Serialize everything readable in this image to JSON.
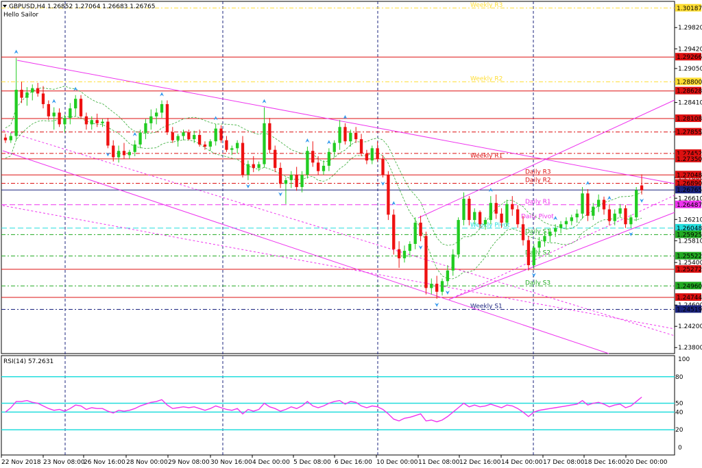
{
  "header": {
    "symbol_line": "GBPUSD,H4  1.26852 1.27064 1.26683 1.26765",
    "indicator_name": "Hello Sailor"
  },
  "rsi_header": "RSI(14) 57.2631",
  "colors": {
    "background": "#ffffff",
    "bull": "#22cc22",
    "bear": "#ee1111",
    "resistance": "#dd1111",
    "support": "#22aa22",
    "pivot_magenta": "#ee33ee",
    "cyan": "#22dddd",
    "navy": "#1a237e",
    "yellow_line": "#ffdd33"
  },
  "chart_data": [
    {
      "type": "candlestick",
      "symbol": "GBPUSD",
      "timeframe": "H4",
      "ohlc_current": {
        "open": 1.26852,
        "high": 1.27064,
        "low": 1.26683,
        "close": 1.26765
      },
      "x_tick_labels": [
        "22 Nov 2018",
        "23 Nov 08:00",
        "26 Nov 16:00",
        "28 Nov 00:00",
        "29 Nov 08:00",
        "30 Nov 16:00",
        "4 Dec 00:00",
        "5 Dec 08:00",
        "6 Dec 16:00",
        "10 Dec 00:00",
        "11 Dec 08:00",
        "12 Dec 16:00",
        "14 Dec 00:00",
        "17 Dec 08:00",
        "18 Dec 16:00",
        "20 Dec 00:00"
      ],
      "y_tick_labels": [
        "1.29820",
        "1.29420",
        "1.29050",
        "1.28410",
        "1.27860",
        "1.27000",
        "1.26610",
        "1.26210",
        "1.25810",
        "1.25400",
        "1.24600",
        "1.24200",
        "1.23800"
      ],
      "ylim": [
        1.237,
        1.303
      ],
      "levels": [
        {
          "label": "Weekly R3",
          "price": 1.30187,
          "color": "#ffdd33",
          "style": "dash-dot",
          "tag": "1.30187"
        },
        {
          "label": "",
          "price": 1.29266,
          "color": "#dd1111",
          "style": "solid",
          "tag": "1.29266"
        },
        {
          "label": "Weekly R2",
          "price": 1.288,
          "color": "#ffdd33",
          "style": "dash-dot",
          "tag": "1.28800"
        },
        {
          "label": "",
          "price": 1.28628,
          "color": "#dd1111",
          "style": "solid",
          "tag": "1.28628"
        },
        {
          "label": "",
          "price": 1.28108,
          "color": "#dd1111",
          "style": "solid",
          "tag": "1.28108"
        },
        {
          "label": "",
          "price": 1.27855,
          "color": "#dd1111",
          "style": "dash-dot",
          "tag": "1.27855"
        },
        {
          "label": "",
          "price": 1.27452,
          "color": "#dd1111",
          "style": "dash-dot",
          "tag": "1.27452"
        },
        {
          "label": "Weekly R1",
          "price": 1.2735,
          "color": "#dd1111",
          "style": "solid",
          "tag": "1.27350"
        },
        {
          "label": "Daily R3",
          "price": 1.27048,
          "color": "#dd1111",
          "style": "solid",
          "tag": "1.27048"
        },
        {
          "label": "Daily R2",
          "price": 1.2689,
          "color": "#dd1111",
          "style": "dash-dot",
          "tag": "1.26890"
        },
        {
          "label": "",
          "price": 1.26765,
          "color": "#1a237e",
          "style": "solid",
          "tag": "1.26765"
        },
        {
          "label": "Daily R1",
          "price": 1.26487,
          "color": "#ee33ee",
          "style": "dash",
          "tag": "1.26487"
        },
        {
          "label": "Weekly Pivot",
          "price": 1.26048,
          "color": "#22dddd",
          "style": "dash",
          "tag": "1.26048"
        },
        {
          "label": "Daily S1",
          "price": 1.25925,
          "color": "#22aa22",
          "style": "dash-dot",
          "tag": "1.25925"
        },
        {
          "label": "Daily S2",
          "price": 1.25522,
          "color": "#22aa22",
          "style": "dash-dot",
          "tag": "1.25522"
        },
        {
          "label": "",
          "price": 1.25272,
          "color": "#dd1111",
          "style": "solid",
          "tag": "1.25272"
        },
        {
          "label": "Daily S3",
          "price": 1.2496,
          "color": "#22aa22",
          "style": "dash-dot",
          "tag": "1.24960"
        },
        {
          "label": "",
          "price": 1.24744,
          "color": "#dd1111",
          "style": "solid",
          "tag": "1.24744"
        },
        {
          "label": "Weekly S1",
          "price": 1.24519,
          "color": "#1a237e",
          "style": "dash-dot",
          "tag": "1.24519"
        }
      ],
      "extra_labels": [
        {
          "label": "Daily Pivot",
          "price": 1.2621,
          "color": "#ee33ee"
        }
      ],
      "candles": [
        [
          1.2775,
          1.2782,
          1.2765,
          1.277
        ],
        [
          1.277,
          1.2784,
          1.2765,
          1.2778
        ],
        [
          1.2778,
          1.2925,
          1.277,
          1.2865
        ],
        [
          1.2865,
          1.288,
          1.284,
          1.285
        ],
        [
          1.285,
          1.287,
          1.2835,
          1.286
        ],
        [
          1.286,
          1.2875,
          1.2845,
          1.2868
        ],
        [
          1.2868,
          1.2878,
          1.2852,
          1.2858
        ],
        [
          1.2858,
          1.2872,
          1.283,
          1.2838
        ],
        [
          1.2838,
          1.2845,
          1.2808,
          1.2815
        ],
        [
          1.2815,
          1.2832,
          1.279,
          1.2822
        ],
        [
          1.2822,
          1.283,
          1.2795,
          1.28
        ],
        [
          1.28,
          1.2818,
          1.2785,
          1.2812
        ],
        [
          1.2812,
          1.284,
          1.28,
          1.283
        ],
        [
          1.283,
          1.2855,
          1.2815,
          1.2848
        ],
        [
          1.2848,
          1.2855,
          1.281,
          1.2815
        ],
        [
          1.2815,
          1.2822,
          1.279,
          1.28
        ],
        [
          1.28,
          1.2815,
          1.279,
          1.2808
        ],
        [
          1.2808,
          1.282,
          1.2795,
          1.2802
        ],
        [
          1.2802,
          1.281,
          1.2795,
          1.2805
        ],
        [
          1.2805,
          1.2812,
          1.2755,
          1.276
        ],
        [
          1.276,
          1.277,
          1.273,
          1.2738
        ],
        [
          1.2738,
          1.276,
          1.2728,
          1.275
        ],
        [
          1.275,
          1.2765,
          1.2735,
          1.2742
        ],
        [
          1.2742,
          1.2752,
          1.2735,
          1.2748
        ],
        [
          1.2748,
          1.277,
          1.274,
          1.2762
        ],
        [
          1.2762,
          1.279,
          1.2755,
          1.2784
        ],
        [
          1.2784,
          1.281,
          1.2772,
          1.2802
        ],
        [
          1.2802,
          1.2828,
          1.279,
          1.2815
        ],
        [
          1.2815,
          1.283,
          1.28,
          1.2822
        ],
        [
          1.2822,
          1.2845,
          1.2812,
          1.2838
        ],
        [
          1.2838,
          1.2845,
          1.278,
          1.2785
        ],
        [
          1.2785,
          1.2795,
          1.2765,
          1.277
        ],
        [
          1.277,
          1.2782,
          1.2758,
          1.2778
        ],
        [
          1.2778,
          1.279,
          1.277,
          1.2785
        ],
        [
          1.2785,
          1.279,
          1.277,
          1.2772
        ],
        [
          1.2772,
          1.2788,
          1.2765,
          1.278
        ],
        [
          1.278,
          1.279,
          1.2758,
          1.2762
        ],
        [
          1.2762,
          1.2768,
          1.2752,
          1.2758
        ],
        [
          1.2758,
          1.2772,
          1.275,
          1.2768
        ],
        [
          1.2768,
          1.28,
          1.276,
          1.2792
        ],
        [
          1.2792,
          1.2798,
          1.2765,
          1.277
        ],
        [
          1.277,
          1.2778,
          1.2748,
          1.2752
        ],
        [
          1.2752,
          1.276,
          1.2742,
          1.2755
        ],
        [
          1.2755,
          1.277,
          1.2745,
          1.2765
        ],
        [
          1.2765,
          1.2778,
          1.27,
          1.2705
        ],
        [
          1.2705,
          1.2732,
          1.2695,
          1.2725
        ],
        [
          1.2725,
          1.274,
          1.271,
          1.2718
        ],
        [
          1.2718,
          1.273,
          1.2712,
          1.2725
        ],
        [
          1.2725,
          1.2832,
          1.2718,
          1.2802
        ],
        [
          1.2802,
          1.2812,
          1.2745,
          1.2752
        ],
        [
          1.2752,
          1.276,
          1.271,
          1.2718
        ],
        [
          1.2718,
          1.2728,
          1.268,
          1.2688
        ],
        [
          1.2688,
          1.27,
          1.265,
          1.2695
        ],
        [
          1.2695,
          1.2712,
          1.268,
          1.2705
        ],
        [
          1.2705,
          1.272,
          1.2675,
          1.2682
        ],
        [
          1.2682,
          1.2712,
          1.2672,
          1.2705
        ],
        [
          1.2705,
          1.2758,
          1.2698,
          1.275
        ],
        [
          1.275,
          1.2768,
          1.272,
          1.2728
        ],
        [
          1.2728,
          1.274,
          1.2705,
          1.2712
        ],
        [
          1.2712,
          1.2732,
          1.2705,
          1.2722
        ],
        [
          1.2722,
          1.2755,
          1.2712,
          1.2748
        ],
        [
          1.2748,
          1.277,
          1.2738,
          1.2765
        ],
        [
          1.2765,
          1.2808,
          1.2752,
          1.2795
        ],
        [
          1.2795,
          1.2802,
          1.2762,
          1.2768
        ],
        [
          1.2768,
          1.279,
          1.2758,
          1.2784
        ],
        [
          1.2784,
          1.2795,
          1.2765,
          1.2772
        ],
        [
          1.2772,
          1.2782,
          1.274,
          1.2745
        ],
        [
          1.2745,
          1.2752,
          1.2725,
          1.2732
        ],
        [
          1.2732,
          1.276,
          1.2725,
          1.2755
        ],
        [
          1.2755,
          1.2768,
          1.273,
          1.2735
        ],
        [
          1.2735,
          1.2742,
          1.27,
          1.2705
        ],
        [
          1.2705,
          1.2712,
          1.262,
          1.263
        ],
        [
          1.263,
          1.264,
          1.2555,
          1.2565
        ],
        [
          1.2565,
          1.258,
          1.253,
          1.2548
        ],
        [
          1.2548,
          1.2572,
          1.254,
          1.2562
        ],
        [
          1.2562,
          1.258,
          1.255,
          1.2575
        ],
        [
          1.2575,
          1.2625,
          1.2565,
          1.2615
        ],
        [
          1.2615,
          1.2628,
          1.258,
          1.259
        ],
        [
          1.259,
          1.2598,
          1.248,
          1.2492
        ],
        [
          1.2492,
          1.251,
          1.248,
          1.25
        ],
        [
          1.25,
          1.2515,
          1.2472,
          1.2485
        ],
        [
          1.2485,
          1.251,
          1.2478,
          1.2505
        ],
        [
          1.2505,
          1.2535,
          1.2495,
          1.2525
        ],
        [
          1.2525,
          1.2565,
          1.2515,
          1.2555
        ],
        [
          1.2555,
          1.2625,
          1.2548,
          1.262
        ],
        [
          1.262,
          1.2672,
          1.261,
          1.266
        ],
        [
          1.266,
          1.2665,
          1.261,
          1.262
        ],
        [
          1.262,
          1.2642,
          1.2612,
          1.2635
        ],
        [
          1.2635,
          1.2638,
          1.2605,
          1.2612
        ],
        [
          1.2612,
          1.2625,
          1.2602,
          1.262
        ],
        [
          1.262,
          1.2665,
          1.2612,
          1.2652
        ],
        [
          1.2652,
          1.2668,
          1.2622,
          1.2632
        ],
        [
          1.2632,
          1.2642,
          1.2605,
          1.2615
        ],
        [
          1.2615,
          1.2658,
          1.2608,
          1.265
        ],
        [
          1.265,
          1.2665,
          1.2628,
          1.264
        ],
        [
          1.264,
          1.2648,
          1.2605,
          1.2612
        ],
        [
          1.2612,
          1.2628,
          1.2572,
          1.2582
        ],
        [
          1.2582,
          1.259,
          1.2525,
          1.2535
        ],
        [
          1.2535,
          1.2575,
          1.2528,
          1.2568
        ],
        [
          1.2568,
          1.2588,
          1.256,
          1.258
        ],
        [
          1.258,
          1.2598,
          1.257,
          1.259
        ],
        [
          1.259,
          1.2605,
          1.2578,
          1.2598
        ],
        [
          1.2598,
          1.2612,
          1.2588,
          1.2605
        ],
        [
          1.2605,
          1.2618,
          1.2595,
          1.2612
        ],
        [
          1.2612,
          1.2625,
          1.2602,
          1.2618
        ],
        [
          1.2618,
          1.263,
          1.261,
          1.2625
        ],
        [
          1.2625,
          1.264,
          1.2615,
          1.2632
        ],
        [
          1.2632,
          1.2682,
          1.2622,
          1.267
        ],
        [
          1.267,
          1.2678,
          1.2618,
          1.2628
        ],
        [
          1.2628,
          1.2652,
          1.262,
          1.2645
        ],
        [
          1.2645,
          1.2668,
          1.2635,
          1.2658
        ],
        [
          1.2658,
          1.2664,
          1.263,
          1.264
        ],
        [
          1.264,
          1.265,
          1.261,
          1.2618
        ],
        [
          1.2618,
          1.264,
          1.261,
          1.2632
        ],
        [
          1.2632,
          1.265,
          1.2625,
          1.2642
        ],
        [
          1.2642,
          1.2648,
          1.2605,
          1.2612
        ],
        [
          1.2612,
          1.263,
          1.2605,
          1.2625
        ],
        [
          1.2625,
          1.2682,
          1.2618,
          1.2676
        ],
        [
          1.2685,
          1.2706,
          1.2668,
          1.2676
        ]
      ],
      "rsi": {
        "label": "RSI(14) 57.2631",
        "ylim": [
          0,
          100
        ],
        "levels": [
          80,
          50,
          40,
          20
        ],
        "level_tags": [
          "80",
          "50",
          "40",
          "20"
        ],
        "axis_labels": [
          "100",
          "0"
        ],
        "values": [
          40,
          45,
          52,
          52,
          53,
          51,
          50,
          47,
          44,
          42,
          43,
          41,
          44,
          48,
          47,
          43,
          45,
          44,
          44,
          41,
          39,
          42,
          41,
          42,
          44,
          47,
          49,
          51,
          52,
          54,
          48,
          44,
          45,
          46,
          45,
          46,
          44,
          42,
          44,
          47,
          45,
          43,
          42,
          44,
          38,
          43,
          41,
          43,
          50,
          46,
          44,
          41,
          43,
          46,
          44,
          47,
          52,
          47,
          45,
          47,
          50,
          52,
          53,
          49,
          52,
          51,
          47,
          45,
          47,
          46,
          43,
          38,
          32,
          30,
          33,
          34,
          36,
          38,
          30,
          31,
          29,
          31,
          35,
          40,
          45,
          50,
          46,
          48,
          46,
          47,
          49,
          47,
          45,
          48,
          47,
          44,
          40,
          35,
          40,
          42,
          43,
          44,
          45,
          46,
          47,
          48,
          49,
          53,
          48,
          50,
          51,
          49,
          46,
          48,
          49,
          45,
          47,
          52,
          57
        ]
      }
    }
  ],
  "price_axis_labels": [
    "1.29820",
    "1.29420",
    "1.29050",
    "1.28410",
    "1.27860",
    "1.27000",
    "1.26610",
    "1.26210",
    "1.25810",
    "1.25400",
    "1.24600",
    "1.24200",
    "1.23800"
  ],
  "time_axis_labels": [
    "22 Nov 2018",
    "23 Nov 08:00",
    "26 Nov 16:00",
    "28 Nov 00:00",
    "29 Nov 08:00",
    "30 Nov 16:00",
    "4 Dec 00:00",
    "5 Dec 08:00",
    "6 Dec 16:00",
    "10 Dec 00:00",
    "11 Dec 08:00",
    "12 Dec 16:00",
    "14 Dec 00:00",
    "17 Dec 08:00",
    "18 Dec 16:00",
    "20 Dec 00:00"
  ]
}
